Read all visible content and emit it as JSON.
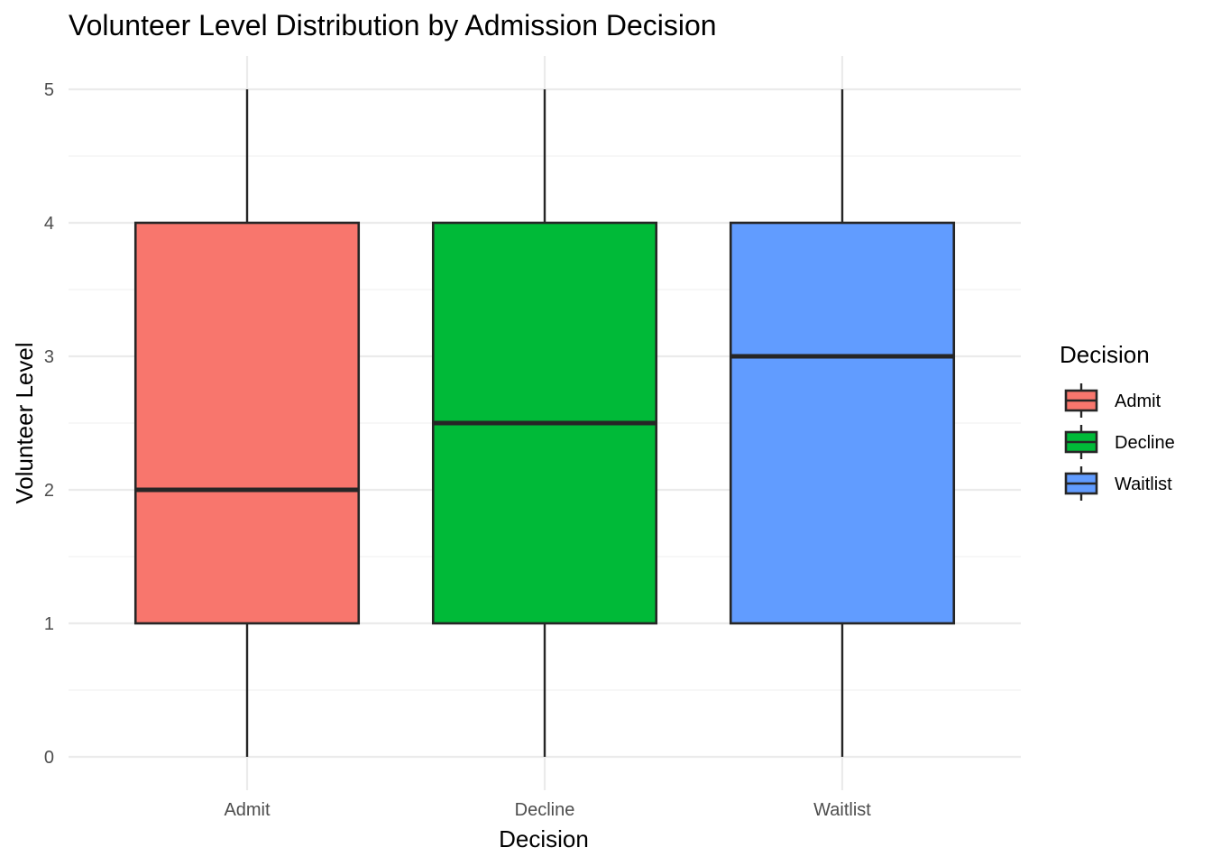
{
  "chart_data": {
    "type": "boxplot",
    "title": "Volunteer Level Distribution by Admission Decision",
    "xlabel": "Decision",
    "ylabel": "Volunteer Level",
    "ylim": [
      -0.25,
      5.25
    ],
    "yticks": [
      0,
      1,
      2,
      3,
      4,
      5
    ],
    "grid": true,
    "legend": {
      "title": "Decision",
      "position": "right"
    },
    "categories": [
      "Admit",
      "Decline",
      "Waitlist"
    ],
    "series": [
      {
        "name": "Admit",
        "color": "#F8766D",
        "min": 0,
        "q1": 1,
        "median": 2,
        "q3": 4,
        "max": 5
      },
      {
        "name": "Decline",
        "color": "#00BA38",
        "min": 0,
        "q1": 1,
        "median": 2.5,
        "q3": 4,
        "max": 5
      },
      {
        "name": "Waitlist",
        "color": "#619CFF",
        "min": 0,
        "q1": 1,
        "median": 3,
        "q3": 4,
        "max": 5
      }
    ]
  }
}
